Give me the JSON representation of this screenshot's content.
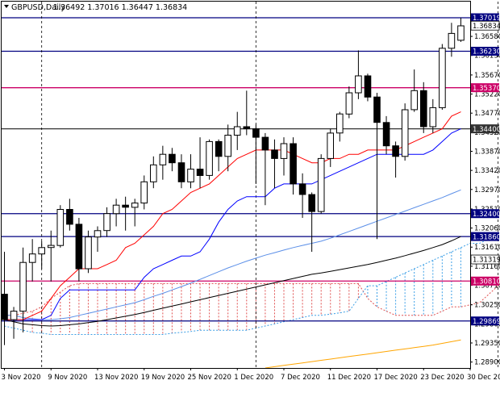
{
  "header": {
    "symbol_timeframe": "GBPUSD,Daily",
    "ohlc": "1.36492 1.37016 1.36447 1.36834"
  },
  "colors": {
    "hline_navy": "#000080",
    "hline_magenta": "#cc0066",
    "hline_dark": "#333333",
    "tenkan": "#ff0000",
    "kijun": "#0000ff",
    "ma_lightblue": "#5b8fe8",
    "ma_black": "#000000",
    "ma_orange": "#ffa500",
    "cloud_red": "#e05050",
    "cloud_blue": "#3b9fe6"
  },
  "chart_data": {
    "type": "candlestick",
    "ylim": [
      1.2876,
      1.374
    ],
    "y_ticks": [
      "1.36580",
      "1.36130",
      "1.35670",
      "1.35220",
      "1.34770",
      "1.34320",
      "1.33870",
      "1.33420",
      "1.32970",
      "1.32510",
      "1.32060",
      "1.31610",
      "1.31160",
      "1.30710",
      "1.30250",
      "1.29800",
      "1.29350",
      "1.28900"
    ],
    "x_ticks": [
      "3 Nov 2020",
      "9 Nov 2020",
      "13 Nov 2020",
      "19 Nov 2020",
      "25 Nov 2020",
      "1 Dec 2020",
      "7 Dec 2020",
      "11 Dec 2020",
      "17 Dec 2020",
      "23 Dec 2020",
      "30 Dec 2020"
    ],
    "horizontal_levels": [
      {
        "value": 1.37019,
        "label": "1.37019",
        "color": "#000080"
      },
      {
        "value": 1.3623,
        "label": "1.36230",
        "color": "#000080"
      },
      {
        "value": 1.3537,
        "label": "1.35370",
        "color": "#cc0066"
      },
      {
        "value": 1.344,
        "label": "1.34400",
        "color": "#333333"
      },
      {
        "value": 1.324,
        "label": "1.32400",
        "color": "#000080"
      },
      {
        "value": 1.3186,
        "label": "1.31860",
        "color": "#000080"
      },
      {
        "value": 1.3081,
        "label": "1.30810",
        "color": "#cc0066"
      },
      {
        "value": 1.29869,
        "label": "1.29869",
        "color": "#000080"
      }
    ],
    "extra_right_labels": [
      {
        "value": 1.36834,
        "label": "1.36834"
      },
      {
        "value": 1.31319,
        "label": "1.31319"
      }
    ],
    "vertical_markers": [
      4,
      27,
      53
    ],
    "candles": [
      {
        "o": 1.305,
        "h": 1.315,
        "l": 1.293,
        "c": 1.299
      },
      {
        "o": 1.299,
        "h": 1.302,
        "l": 1.2945,
        "c": 1.301
      },
      {
        "o": 1.301,
        "h": 1.316,
        "l": 1.296,
        "c": 1.3125
      },
      {
        "o": 1.3125,
        "h": 1.318,
        "l": 1.308,
        "c": 1.3145
      },
      {
        "o": 1.3145,
        "h": 1.3175,
        "l": 1.311,
        "c": 1.316
      },
      {
        "o": 1.316,
        "h": 1.32,
        "l": 1.308,
        "c": 1.3165
      },
      {
        "o": 1.3165,
        "h": 1.326,
        "l": 1.316,
        "c": 1.325
      },
      {
        "o": 1.325,
        "h": 1.3275,
        "l": 1.32,
        "c": 1.3215
      },
      {
        "o": 1.3215,
        "h": 1.323,
        "l": 1.308,
        "c": 1.311
      },
      {
        "o": 1.311,
        "h": 1.32,
        "l": 1.31,
        "c": 1.3185
      },
      {
        "o": 1.3185,
        "h": 1.321,
        "l": 1.315,
        "c": 1.32
      },
      {
        "o": 1.32,
        "h": 1.3255,
        "l": 1.3185,
        "c": 1.324
      },
      {
        "o": 1.324,
        "h": 1.3275,
        "l": 1.321,
        "c": 1.326
      },
      {
        "o": 1.326,
        "h": 1.328,
        "l": 1.32,
        "c": 1.3255
      },
      {
        "o": 1.3255,
        "h": 1.3275,
        "l": 1.321,
        "c": 1.3265
      },
      {
        "o": 1.3265,
        "h": 1.333,
        "l": 1.325,
        "c": 1.3315
      },
      {
        "o": 1.3315,
        "h": 1.3375,
        "l": 1.33,
        "c": 1.3355
      },
      {
        "o": 1.3355,
        "h": 1.34,
        "l": 1.332,
        "c": 1.338
      },
      {
        "o": 1.338,
        "h": 1.3395,
        "l": 1.334,
        "c": 1.336
      },
      {
        "o": 1.336,
        "h": 1.338,
        "l": 1.33,
        "c": 1.3315
      },
      {
        "o": 1.3315,
        "h": 1.338,
        "l": 1.33,
        "c": 1.3345
      },
      {
        "o": 1.3345,
        "h": 1.342,
        "l": 1.33,
        "c": 1.333
      },
      {
        "o": 1.333,
        "h": 1.3415,
        "l": 1.332,
        "c": 1.341
      },
      {
        "o": 1.341,
        "h": 1.3415,
        "l": 1.334,
        "c": 1.3375
      },
      {
        "o": 1.3375,
        "h": 1.345,
        "l": 1.334,
        "c": 1.3425
      },
      {
        "o": 1.3425,
        "h": 1.348,
        "l": 1.339,
        "c": 1.3445
      },
      {
        "o": 1.3445,
        "h": 1.353,
        "l": 1.3425,
        "c": 1.344
      },
      {
        "o": 1.344,
        "h": 1.345,
        "l": 1.331,
        "c": 1.342
      },
      {
        "o": 1.342,
        "h": 1.343,
        "l": 1.326,
        "c": 1.339
      },
      {
        "o": 1.339,
        "h": 1.3415,
        "l": 1.33,
        "c": 1.337
      },
      {
        "o": 1.337,
        "h": 1.342,
        "l": 1.333,
        "c": 1.3405
      },
      {
        "o": 1.3405,
        "h": 1.342,
        "l": 1.3285,
        "c": 1.331
      },
      {
        "o": 1.331,
        "h": 1.3335,
        "l": 1.323,
        "c": 1.3285
      },
      {
        "o": 1.3285,
        "h": 1.329,
        "l": 1.315,
        "c": 1.3245
      },
      {
        "o": 1.3245,
        "h": 1.338,
        "l": 1.324,
        "c": 1.337
      },
      {
        "o": 1.337,
        "h": 1.344,
        "l": 1.335,
        "c": 1.343
      },
      {
        "o": 1.343,
        "h": 1.348,
        "l": 1.341,
        "c": 1.3475
      },
      {
        "o": 1.3475,
        "h": 1.354,
        "l": 1.3465,
        "c": 1.3525
      },
      {
        "o": 1.3525,
        "h": 1.3625,
        "l": 1.351,
        "c": 1.3565
      },
      {
        "o": 1.3565,
        "h": 1.357,
        "l": 1.3505,
        "c": 1.3515
      },
      {
        "o": 1.3515,
        "h": 1.3525,
        "l": 1.318,
        "c": 1.3455
      },
      {
        "o": 1.3455,
        "h": 1.347,
        "l": 1.338,
        "c": 1.34
      },
      {
        "o": 1.34,
        "h": 1.341,
        "l": 1.3325,
        "c": 1.3375
      },
      {
        "o": 1.3375,
        "h": 1.35,
        "l": 1.3365,
        "c": 1.3485
      },
      {
        "o": 1.3485,
        "h": 1.358,
        "l": 1.348,
        "c": 1.353
      },
      {
        "o": 1.353,
        "h": 1.355,
        "l": 1.343,
        "c": 1.3445
      },
      {
        "o": 1.3445,
        "h": 1.351,
        "l": 1.343,
        "c": 1.349
      },
      {
        "o": 1.349,
        "h": 1.364,
        "l": 1.3485,
        "c": 1.363
      },
      {
        "o": 1.363,
        "h": 1.369,
        "l": 1.361,
        "c": 1.3665
      },
      {
        "o": 1.3649,
        "h": 1.3702,
        "l": 1.3645,
        "c": 1.3683
      }
    ]
  },
  "indicators": {
    "tenkan": [
      1.299,
      1.299,
      1.299,
      1.3,
      1.301,
      1.304,
      1.307,
      1.309,
      1.311,
      1.311,
      1.311,
      1.312,
      1.313,
      1.316,
      1.317,
      1.319,
      1.321,
      1.324,
      1.325,
      1.327,
      1.329,
      1.33,
      1.331,
      1.333,
      1.335,
      1.337,
      1.338,
      1.339,
      1.339,
      1.339,
      1.339,
      1.338,
      1.337,
      1.336,
      1.336,
      1.337,
      1.337,
      1.338,
      1.338,
      1.339,
      1.339,
      1.339,
      1.339,
      1.34,
      1.341,
      1.342,
      1.343,
      1.344,
      1.347,
      1.348
    ],
    "kijun": [
      1.299,
      1.299,
      1.299,
      1.299,
      1.299,
      1.3,
      1.304,
      1.306,
      1.306,
      1.306,
      1.306,
      1.306,
      1.306,
      1.306,
      1.306,
      1.309,
      1.311,
      1.312,
      1.313,
      1.314,
      1.314,
      1.315,
      1.318,
      1.322,
      1.325,
      1.327,
      1.328,
      1.328,
      1.328,
      1.33,
      1.331,
      1.331,
      1.331,
      1.331,
      1.332,
      1.333,
      1.334,
      1.335,
      1.336,
      1.337,
      1.338,
      1.338,
      1.338,
      1.338,
      1.338,
      1.338,
      1.339,
      1.341,
      1.343,
      1.344
    ],
    "ma_lightblue": [
      1.3,
      1.3,
      1.2995,
      1.2992,
      1.299,
      1.299,
      1.2992,
      1.2995,
      1.3,
      1.3005,
      1.301,
      1.3015,
      1.302,
      1.3025,
      1.303,
      1.3037,
      1.3045,
      1.3052,
      1.306,
      1.3068,
      1.3076,
      1.3085,
      1.3094,
      1.3103,
      1.3112,
      1.312,
      1.3128,
      1.3135,
      1.3142,
      1.3148,
      1.3154,
      1.316,
      1.3165,
      1.317,
      1.3175,
      1.3182,
      1.319,
      1.3198,
      1.3206,
      1.3214,
      1.3222,
      1.323,
      1.3238,
      1.3246,
      1.3254,
      1.3262,
      1.327,
      1.3278,
      1.3287,
      1.3296
    ],
    "ma_black": [
      1.299,
      1.2985,
      1.298,
      1.2978,
      1.2976,
      1.2975,
      1.2976,
      1.2978,
      1.298,
      1.2983,
      1.2986,
      1.299,
      1.2994,
      1.2998,
      1.3002,
      1.3007,
      1.3012,
      1.3017,
      1.3022,
      1.3027,
      1.3032,
      1.3037,
      1.3042,
      1.3047,
      1.3052,
      1.3057,
      1.3062,
      1.3067,
      1.3072,
      1.3077,
      1.3082,
      1.3087,
      1.3092,
      1.3097,
      1.31,
      1.3104,
      1.3108,
      1.3112,
      1.3116,
      1.312,
      1.3125,
      1.313,
      1.3135,
      1.3141,
      1.3147,
      1.3153,
      1.316,
      1.3167,
      1.3176,
      1.3186
    ],
    "ma_orange": [
      null,
      null,
      null,
      null,
      null,
      null,
      null,
      null,
      null,
      null,
      null,
      null,
      null,
      null,
      null,
      null,
      null,
      null,
      null,
      null,
      null,
      null,
      null,
      null,
      null,
      null,
      null,
      null,
      1.2876,
      1.2879,
      1.2882,
      1.2885,
      1.2888,
      1.2891,
      1.2894,
      1.2897,
      1.29,
      1.2903,
      1.2906,
      1.2909,
      1.2912,
      1.2915,
      1.2918,
      1.2921,
      1.2924,
      1.2927,
      1.293,
      1.2934,
      1.2938,
      1.2942
    ],
    "cloud_a": [
      1.3,
      1.3,
      1.3005,
      1.301,
      1.302,
      1.304,
      1.3055,
      1.307,
      1.3075,
      1.3075,
      1.3075,
      1.3075,
      1.3075,
      1.3075,
      1.3075,
      1.3075,
      1.3075,
      1.3075,
      1.3075,
      1.3075,
      1.3075,
      1.3075,
      1.3075,
      1.3075,
      1.3075,
      1.3075,
      1.3075,
      1.3075,
      1.3075,
      1.3075,
      1.3075,
      1.3075,
      1.3075,
      1.3075,
      1.3075,
      1.3075,
      1.3075,
      1.3075,
      1.3075,
      1.304,
      1.302,
      1.301,
      1.3,
      1.3,
      1.3,
      1.3,
      1.3,
      1.301,
      1.302,
      1.302,
      1.3025,
      1.303,
      1.305,
      1.307,
      1.309,
      1.312,
      1.316,
      1.319,
      1.322
    ],
    "cloud_b": [
      1.2975,
      1.297,
      1.2965,
      1.296,
      1.2958,
      1.2955,
      1.2955,
      1.2955,
      1.2955,
      1.2955,
      1.2955,
      1.2955,
      1.2955,
      1.2955,
      1.2955,
      1.2955,
      1.2955,
      1.2955,
      1.2958,
      1.296,
      1.2962,
      1.2965,
      1.2965,
      1.2965,
      1.2965,
      1.2965,
      1.2965,
      1.297,
      1.2975,
      1.298,
      1.2985,
      1.299,
      1.2995,
      1.3,
      1.3,
      1.3003,
      1.3006,
      1.301,
      1.304,
      1.307,
      1.307,
      1.308,
      1.309,
      1.31,
      1.311,
      1.312,
      1.313,
      1.314,
      1.315,
      1.316,
      1.317,
      1.317,
      1.318,
      1.318,
      1.318,
      1.318,
      1.318,
      1.318,
      1.318
    ]
  }
}
